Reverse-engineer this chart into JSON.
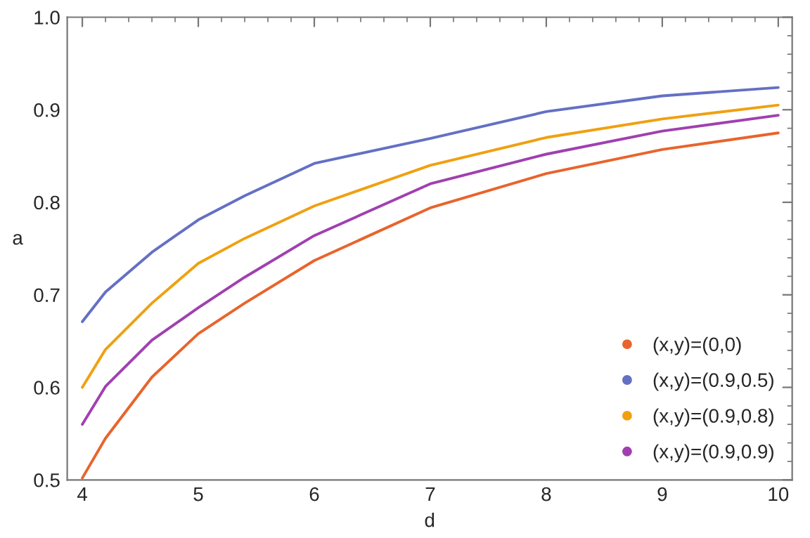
{
  "chart_data": {
    "type": "line",
    "xlabel": "d",
    "ylabel": "a",
    "x": [
      4,
      4.2,
      4.6,
      5,
      5.4,
      6,
      7,
      8,
      9,
      10
    ],
    "series": [
      {
        "name": "(x,y)=(0,0)",
        "color": "#e8642c",
        "values": [
          0.502,
          0.545,
          0.611,
          0.658,
          0.691,
          0.737,
          0.794,
          0.831,
          0.857,
          0.875
        ]
      },
      {
        "name": "(x,y)=(0.9,0.5)",
        "color": "#6470c4",
        "values": [
          0.671,
          0.703,
          0.746,
          0.781,
          0.807,
          0.842,
          0.869,
          0.898,
          0.915,
          0.924
        ]
      },
      {
        "name": "(x,y)=(0.9,0.8)",
        "color": "#f0a010",
        "values": [
          0.6,
          0.641,
          0.691,
          0.734,
          0.761,
          0.796,
          0.84,
          0.87,
          0.89,
          0.905
        ]
      },
      {
        "name": "(x,y)=(0.9,0.9)",
        "color": "#a040b0",
        "values": [
          0.56,
          0.601,
          0.651,
          0.686,
          0.719,
          0.764,
          0.82,
          0.852,
          0.877,
          0.894
        ]
      }
    ],
    "xlim": [
      3.87,
      10.12
    ],
    "ylim": [
      0.5,
      1.0
    ],
    "xticks": [
      4,
      5,
      6,
      7,
      8,
      9,
      10
    ],
    "yticks": [
      0.5,
      0.6,
      0.7,
      0.8,
      0.9,
      {
        "value": 1.0,
        "label": "1.0"
      }
    ],
    "grid": false,
    "legend": "bottom right",
    "line_style": "solid"
  }
}
